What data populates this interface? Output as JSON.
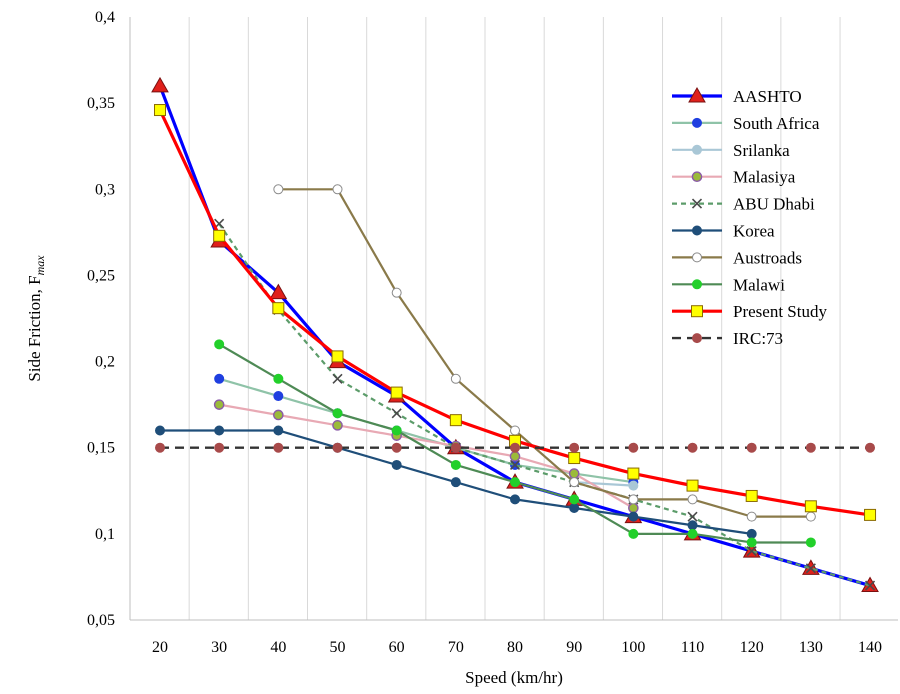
{
  "chart_data": {
    "type": "line",
    "title": "",
    "xlabel": "Speed (km/hr)",
    "ylabel": "Side Friction, F",
    "ylabel_subscript": "max",
    "xlim": [
      20,
      140
    ],
    "ylim": [
      0.05,
      0.4
    ],
    "x_ticks": [
      "20",
      "30",
      "40",
      "50",
      "60",
      "70",
      "80",
      "90",
      "100",
      "110",
      "120",
      "130",
      "140"
    ],
    "y_ticks": [
      "0,05",
      "0,1",
      "0,15",
      "0,2",
      "0,25",
      "0,3",
      "0,35",
      "0,4"
    ],
    "grid": "vertical",
    "legend_position": "right",
    "series": [
      {
        "name": "AASHTO",
        "color": "#0000FF",
        "marker": "triangle",
        "marker_fill": "#E0201B",
        "dash": "solid",
        "points": [
          [
            20,
            0.36
          ],
          [
            30,
            0.27
          ],
          [
            40,
            0.24
          ],
          [
            50,
            0.2
          ],
          [
            60,
            0.18
          ],
          [
            70,
            0.15
          ],
          [
            80,
            0.13
          ],
          [
            90,
            0.12
          ],
          [
            100,
            0.11
          ],
          [
            110,
            0.1
          ],
          [
            120,
            0.09
          ],
          [
            130,
            0.08
          ],
          [
            140,
            0.07
          ]
        ]
      },
      {
        "name": "South Africa",
        "color": "#8FC3A8",
        "marker": "circle",
        "marker_fill": "#1F3FE0",
        "dash": "solid",
        "points": [
          [
            30,
            0.19
          ],
          [
            40,
            0.18
          ],
          [
            50,
            0.17
          ],
          [
            60,
            0.16
          ],
          [
            70,
            0.15
          ],
          [
            80,
            0.14
          ],
          [
            90,
            0.135
          ],
          [
            100,
            0.13
          ]
        ]
      },
      {
        "name": "Srilanka",
        "color": "#A9C7D6",
        "marker": "circle",
        "marker_fill": "#A9C7D6",
        "dash": "solid",
        "points": [
          [
            90,
            0.13
          ],
          [
            100,
            0.128
          ]
        ]
      },
      {
        "name": "Malasiya",
        "color": "#E8A9B4",
        "marker": "circle",
        "marker_fill": "#9BBB3A",
        "marker_stroke": "#8A5AA8",
        "dash": "solid",
        "points": [
          [
            30,
            0.175
          ],
          [
            40,
            0.169
          ],
          [
            50,
            0.163
          ],
          [
            60,
            0.157
          ],
          [
            70,
            0.151
          ],
          [
            80,
            0.145
          ],
          [
            90,
            0.135
          ],
          [
            100,
            0.115
          ]
        ]
      },
      {
        "name": "ABU Dhabi",
        "color": "#5C9C6A",
        "marker": "x",
        "marker_fill": "#4A4A4A",
        "dash": "dashed",
        "points": [
          [
            30,
            0.28
          ],
          [
            40,
            0.23
          ],
          [
            50,
            0.19
          ],
          [
            60,
            0.17
          ],
          [
            70,
            0.15
          ],
          [
            80,
            0.14
          ],
          [
            90,
            0.13
          ],
          [
            100,
            0.12
          ],
          [
            110,
            0.11
          ],
          [
            120,
            0.09
          ],
          [
            130,
            0.08
          ],
          [
            140,
            0.07
          ]
        ]
      },
      {
        "name": "Korea",
        "color": "#1F4E79",
        "marker": "circle",
        "marker_fill": "#1F4E79",
        "dash": "solid",
        "points": [
          [
            20,
            0.16
          ],
          [
            30,
            0.16
          ],
          [
            40,
            0.16
          ],
          [
            50,
            0.15
          ],
          [
            60,
            0.14
          ],
          [
            70,
            0.13
          ],
          [
            80,
            0.12
          ],
          [
            90,
            0.115
          ],
          [
            100,
            0.11
          ],
          [
            110,
            0.105
          ],
          [
            120,
            0.1
          ]
        ]
      },
      {
        "name": "Austroads",
        "color": "#8A7A4A",
        "marker": "circle-open",
        "marker_fill": "#FFFFFF",
        "dash": "solid",
        "points": [
          [
            40,
            0.3
          ],
          [
            50,
            0.3
          ],
          [
            60,
            0.24
          ],
          [
            70,
            0.19
          ],
          [
            80,
            0.16
          ],
          [
            90,
            0.13
          ],
          [
            100,
            0.12
          ],
          [
            110,
            0.12
          ],
          [
            120,
            0.11
          ],
          [
            130,
            0.11
          ]
        ]
      },
      {
        "name": "Malawi",
        "color": "#4E8A55",
        "marker": "circle",
        "marker_fill": "#22D02A",
        "dash": "solid",
        "points": [
          [
            30,
            0.21
          ],
          [
            40,
            0.19
          ],
          [
            50,
            0.17
          ],
          [
            60,
            0.16
          ],
          [
            70,
            0.14
          ],
          [
            80,
            0.13
          ],
          [
            90,
            0.12
          ],
          [
            100,
            0.1
          ],
          [
            110,
            0.1
          ],
          [
            120,
            0.095
          ],
          [
            130,
            0.095
          ]
        ]
      },
      {
        "name": "Present Study",
        "color": "#FF0000",
        "marker": "square",
        "marker_fill": "#FFFF00",
        "dash": "solid",
        "points": [
          [
            20,
            0.346
          ],
          [
            30,
            0.273
          ],
          [
            40,
            0.231
          ],
          [
            50,
            0.203
          ],
          [
            60,
            0.182
          ],
          [
            70,
            0.166
          ],
          [
            80,
            0.154
          ],
          [
            90,
            0.144
          ],
          [
            100,
            0.135
          ],
          [
            110,
            0.128
          ],
          [
            120,
            0.122
          ],
          [
            130,
            0.116
          ],
          [
            140,
            0.111
          ]
        ]
      },
      {
        "name": "IRC:73",
        "color": "#333333",
        "marker": "circle",
        "marker_fill": "#A84A4A",
        "dash": "dashed",
        "points": [
          [
            20,
            0.15
          ],
          [
            30,
            0.15
          ],
          [
            40,
            0.15
          ],
          [
            50,
            0.15
          ],
          [
            60,
            0.15
          ],
          [
            70,
            0.15
          ],
          [
            80,
            0.15
          ],
          [
            90,
            0.15
          ],
          [
            100,
            0.15
          ],
          [
            110,
            0.15
          ],
          [
            120,
            0.15
          ],
          [
            130,
            0.15
          ],
          [
            140,
            0.15
          ]
        ]
      }
    ]
  }
}
